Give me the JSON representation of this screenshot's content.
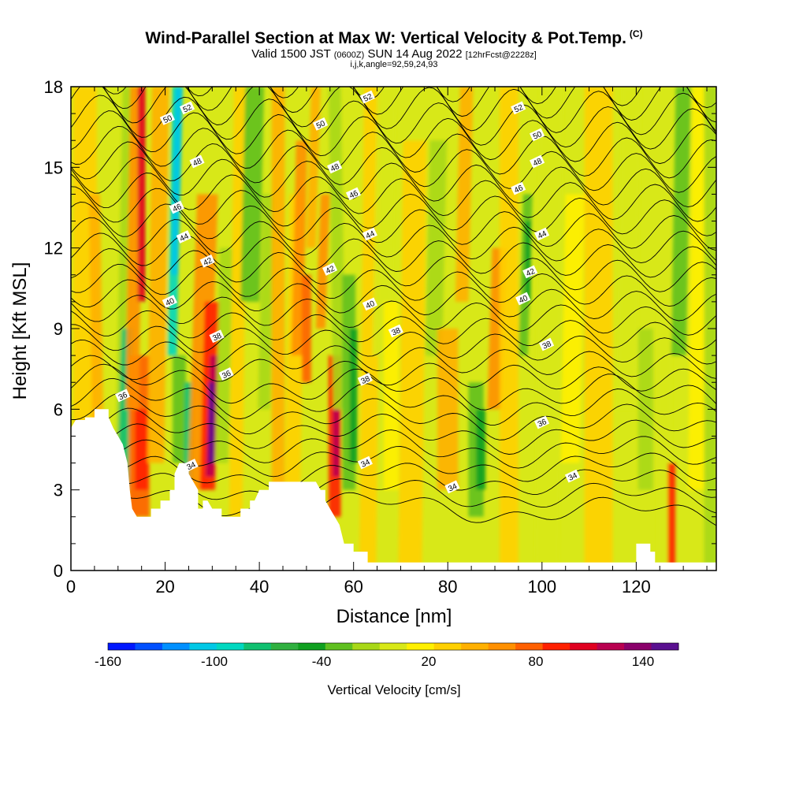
{
  "title": {
    "main": "Wind-Parallel Section at Max W: Vertical Velocity & Pot.Temp.",
    "copyright": "(C)",
    "valid_prefix": "Valid 1500 JST",
    "valid_utc": "(0600Z)",
    "valid_date": "SUN 14 Aug 2022",
    "forecast": "[12hrFcst@2228z]",
    "indices": "i,j,k,angle=92,59,24,93"
  },
  "chart_data": {
    "type": "heatmap",
    "xlabel": "Distance [nm]",
    "ylabel": "Height [Kft MSL]",
    "xlim": [
      0,
      137
    ],
    "ylim": [
      0,
      18
    ],
    "x_ticks": [
      "0",
      "20",
      "40",
      "60",
      "80",
      "100",
      "120"
    ],
    "x_tick_values": [
      0,
      20,
      40,
      60,
      80,
      100,
      120
    ],
    "y_ticks": [
      "0",
      "3",
      "6",
      "9",
      "12",
      "15",
      "18"
    ],
    "y_tick_values": [
      0,
      3,
      6,
      9,
      12,
      15,
      18
    ],
    "colorbar": {
      "title": "Vertical Velocity [cm/s]",
      "labels": [
        "-160",
        "-100",
        "-40",
        "20",
        "80",
        "140"
      ],
      "colors": [
        "#0018ff",
        "#0050ff",
        "#0090ff",
        "#00c8e6",
        "#00d8c0",
        "#10c070",
        "#30b040",
        "#10a020",
        "#60c020",
        "#a8d818",
        "#d8e818",
        "#fff000",
        "#ffd000",
        "#ffb000",
        "#ff9000",
        "#ff6000",
        "#ff2000",
        "#e00020",
        "#b80050",
        "#8a006a",
        "#5a1090"
      ]
    },
    "terrain": [
      [
        0,
        5.3
      ],
      [
        1,
        5.6
      ],
      [
        3,
        5.6
      ],
      [
        3,
        5.7
      ],
      [
        5,
        5.7
      ],
      [
        5,
        6.0
      ],
      [
        8,
        6.0
      ],
      [
        8,
        5.7
      ],
      [
        9,
        5.3
      ],
      [
        10,
        5.0
      ],
      [
        11,
        4.7
      ],
      [
        12,
        4.0
      ],
      [
        12.5,
        3.0
      ],
      [
        13,
        2.3
      ],
      [
        14,
        2.0
      ],
      [
        17,
        2.0
      ],
      [
        17,
        2.3
      ],
      [
        19,
        2.3
      ],
      [
        19,
        2.6
      ],
      [
        21,
        2.6
      ],
      [
        21,
        3.0
      ],
      [
        22,
        3.0
      ],
      [
        22,
        3.6
      ],
      [
        23,
        4.0
      ],
      [
        25,
        4.0
      ],
      [
        25,
        3.6
      ],
      [
        26,
        3.3
      ],
      [
        27,
        3.0
      ],
      [
        27,
        2.3
      ],
      [
        28,
        2.3
      ],
      [
        28,
        2.6
      ],
      [
        29,
        2.6
      ],
      [
        30,
        2.3
      ],
      [
        32,
        2.3
      ],
      [
        32,
        2.0
      ],
      [
        36,
        2.0
      ],
      [
        36,
        2.3
      ],
      [
        38,
        2.3
      ],
      [
        38,
        2.6
      ],
      [
        39,
        2.6
      ],
      [
        40,
        3.0
      ],
      [
        42,
        3.0
      ],
      [
        42,
        3.3
      ],
      [
        47,
        3.3
      ],
      [
        50,
        3.3
      ],
      [
        52,
        3.3
      ],
      [
        53,
        3.0
      ],
      [
        54,
        3.0
      ],
      [
        54,
        2.6
      ],
      [
        55,
        2.3
      ],
      [
        56,
        2.0
      ],
      [
        57,
        1.7
      ],
      [
        58,
        1.0
      ],
      [
        60,
        1.0
      ],
      [
        60,
        0.7
      ],
      [
        63,
        0.7
      ],
      [
        63,
        0.3
      ],
      [
        70,
        0.3
      ],
      [
        120,
        0.3
      ],
      [
        120,
        1.0
      ],
      [
        123,
        1.0
      ],
      [
        123,
        0.7
      ],
      [
        124,
        0.7
      ],
      [
        124,
        0.3
      ],
      [
        128,
        0.3
      ],
      [
        128,
        0.3
      ]
    ],
    "contour_labels": [
      {
        "x": 24.7,
        "y": 17.2,
        "text": "52"
      },
      {
        "x": 20.5,
        "y": 16.8,
        "text": "50"
      },
      {
        "x": 26.8,
        "y": 15.2,
        "text": "48"
      },
      {
        "x": 22.5,
        "y": 13.5,
        "text": "46"
      },
      {
        "x": 24.0,
        "y": 12.4,
        "text": "44"
      },
      {
        "x": 29.0,
        "y": 11.5,
        "text": "42"
      },
      {
        "x": 21.0,
        "y": 10.0,
        "text": "40"
      },
      {
        "x": 31.0,
        "y": 8.7,
        "text": "38"
      },
      {
        "x": 33.0,
        "y": 7.3,
        "text": "36"
      },
      {
        "x": 11.0,
        "y": 6.5,
        "text": "36"
      },
      {
        "x": 25.5,
        "y": 3.9,
        "text": "34"
      },
      {
        "x": 63.0,
        "y": 17.6,
        "text": "52"
      },
      {
        "x": 53.0,
        "y": 16.6,
        "text": "50"
      },
      {
        "x": 56.0,
        "y": 15.0,
        "text": "48"
      },
      {
        "x": 60.0,
        "y": 14.0,
        "text": "46"
      },
      {
        "x": 63.5,
        "y": 12.5,
        "text": "44"
      },
      {
        "x": 55.0,
        "y": 11.2,
        "text": "42"
      },
      {
        "x": 63.5,
        "y": 9.9,
        "text": "40"
      },
      {
        "x": 69.0,
        "y": 8.9,
        "text": "38"
      },
      {
        "x": 62.5,
        "y": 7.1,
        "text": "38"
      },
      {
        "x": 62.5,
        "y": 4.0,
        "text": "34"
      },
      {
        "x": 81.0,
        "y": 3.1,
        "text": "34"
      },
      {
        "x": 95.0,
        "y": 17.2,
        "text": "52"
      },
      {
        "x": 99.0,
        "y": 16.2,
        "text": "50"
      },
      {
        "x": 99.0,
        "y": 15.2,
        "text": "48"
      },
      {
        "x": 95.0,
        "y": 14.2,
        "text": "46"
      },
      {
        "x": 100.0,
        "y": 12.5,
        "text": "44"
      },
      {
        "x": 97.5,
        "y": 11.1,
        "text": "42"
      },
      {
        "x": 96.0,
        "y": 10.1,
        "text": "40"
      },
      {
        "x": 101.0,
        "y": 8.4,
        "text": "38"
      },
      {
        "x": 100.0,
        "y": 5.5,
        "text": "36"
      },
      {
        "x": 106.5,
        "y": 3.5,
        "text": "34"
      }
    ],
    "grid": false
  }
}
